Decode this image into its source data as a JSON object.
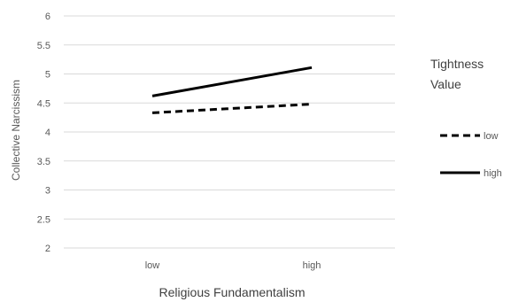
{
  "chart_data": {
    "type": "line",
    "categories": [
      "low",
      "high"
    ],
    "xlabel": "Religious Fundamentalism",
    "ylabel": "Collective Narcissism",
    "ylim": [
      2,
      6
    ],
    "yticks": [
      "2",
      "2.5",
      "3",
      "3.5",
      "4",
      "4.5",
      "5",
      "5.5",
      "6"
    ],
    "grid": true,
    "legend": {
      "title_line1": "Tightness",
      "title_line2": "Value",
      "placement": "right"
    },
    "series": [
      {
        "name": "low",
        "values": [
          4.33,
          4.48
        ],
        "style": "dashed",
        "color": "#000000"
      },
      {
        "name": "high",
        "values": [
          4.62,
          5.11
        ],
        "style": "solid",
        "color": "#000000"
      }
    ]
  }
}
